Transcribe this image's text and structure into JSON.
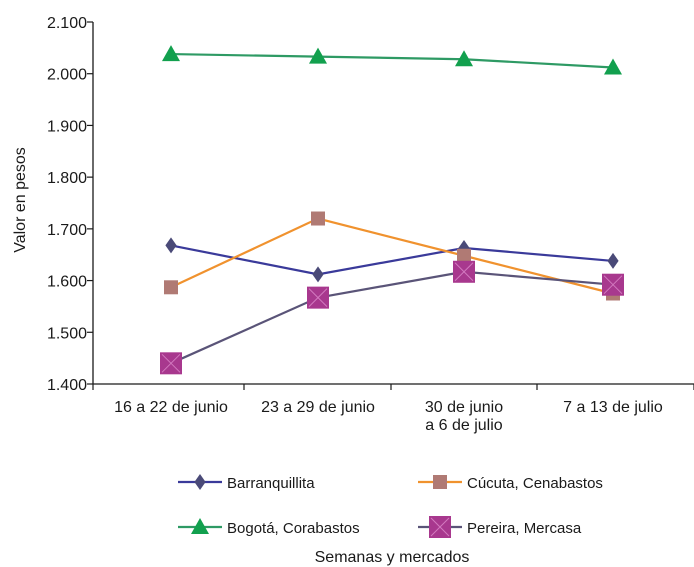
{
  "chart_data": {
    "type": "line",
    "title": "",
    "xlabel": "Semanas y mercados",
    "ylabel": "Valor en pesos",
    "ylim": [
      1400,
      2100
    ],
    "yticks": [
      {
        "value": 1400,
        "label": "1.400"
      },
      {
        "value": 1500,
        "label": "1.500"
      },
      {
        "value": 1600,
        "label": "1.600"
      },
      {
        "value": 1700,
        "label": "1.700"
      },
      {
        "value": 1800,
        "label": "1.800"
      },
      {
        "value": 1900,
        "label": "1.900"
      },
      {
        "value": 2000,
        "label": "2.000"
      },
      {
        "value": 2100,
        "label": "2.100"
      }
    ],
    "categories": [
      [
        "16 a 22 de junio"
      ],
      [
        "23 a 29 de junio"
      ],
      [
        "30 de junio",
        "a 6 de julio"
      ],
      [
        "7 a 13 de julio"
      ]
    ],
    "grid": false,
    "legend_position": "bottom",
    "series": [
      {
        "name": "Barranquillita",
        "marker": "diamond",
        "line_color": "#3a3a9a",
        "marker_color": "#4a4a78",
        "values": [
          1668,
          1612,
          1663,
          1638
        ]
      },
      {
        "name": "Cúcuta, Cenabastos",
        "marker": "square",
        "line_color": "#f0922e",
        "marker_color": "#b07a74",
        "values": [
          1587,
          1720,
          1648,
          1575
        ]
      },
      {
        "name": "Bogotá, Corabastos",
        "marker": "triangle",
        "line_color": "#2e9a64",
        "marker_color": "#12a04e",
        "values": [
          2038,
          2033,
          2028,
          2012
        ]
      },
      {
        "name": "Pereira, Mercasa",
        "marker": "square-x",
        "line_color": "#5a5478",
        "marker_color": "#a8388e",
        "values": [
          1440,
          1567,
          1617,
          1592
        ]
      }
    ]
  }
}
